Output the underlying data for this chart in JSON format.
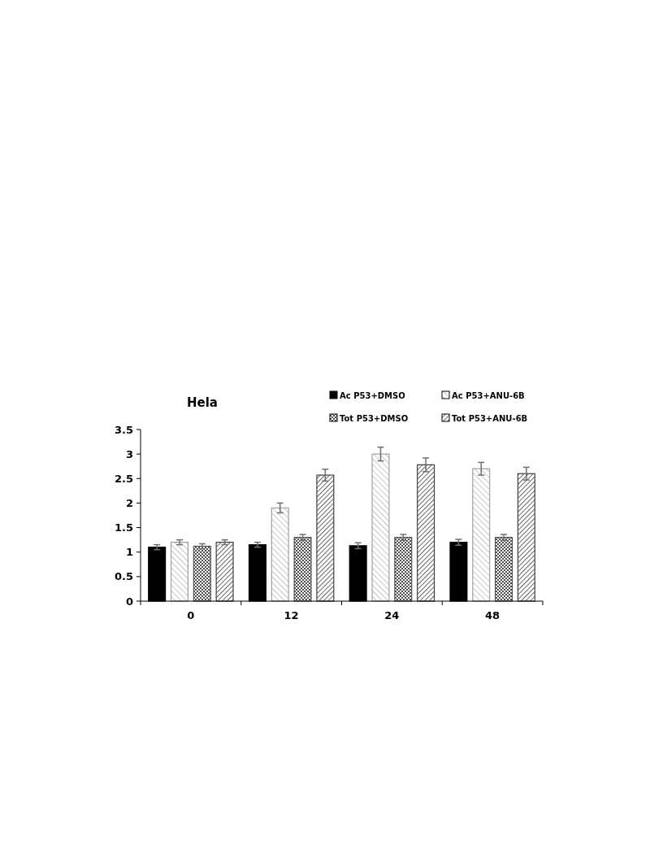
{
  "chart_data": {
    "type": "bar",
    "title": "Hela",
    "categories": [
      "0",
      "12",
      "24",
      "48"
    ],
    "series": [
      {
        "name": "Ac P53+DMSO",
        "color": "#000000",
        "values": [
          1.1,
          1.15,
          1.13,
          1.2
        ],
        "errors": [
          0.05,
          0.05,
          0.06,
          0.06
        ]
      },
      {
        "name": "Ac P53+ANU-6B",
        "color": "#a0a0a0",
        "values": [
          1.2,
          1.9,
          3.0,
          2.7
        ],
        "errors": [
          0.05,
          0.1,
          0.14,
          0.13
        ]
      },
      {
        "name": "Tot P53+DMSO",
        "color": "#505050",
        "values": [
          1.12,
          1.3,
          1.3,
          1.3
        ],
        "errors": [
          0.05,
          0.06,
          0.06,
          0.06
        ]
      },
      {
        "name": "Tot P53+ANU-6B",
        "color": "#404040",
        "values": [
          1.2,
          2.57,
          2.78,
          2.6
        ],
        "errors": [
          0.05,
          0.12,
          0.14,
          0.13
        ]
      }
    ],
    "ylim": [
      0,
      3.5
    ],
    "yticks": [
      0,
      0.5,
      1,
      1.5,
      2,
      2.5,
      3,
      3.5
    ],
    "grid": false,
    "legend": "top right"
  }
}
